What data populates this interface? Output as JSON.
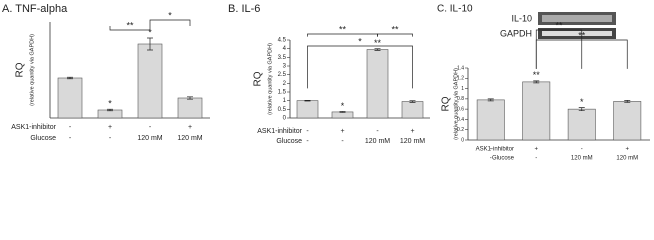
{
  "chart_data": [
    {
      "type": "bar",
      "title": "A. TNF-alpha",
      "y_label": "RQ",
      "y_sublabel": "(relative quantity via GAPDH)",
      "values": [
        1.0,
        0.2,
        1.85,
        0.5
      ],
      "errors": [
        0.02,
        0.02,
        0.15,
        0.03
      ],
      "color": "#d9d9d9",
      "ylim": [
        0,
        2.4
      ],
      "bar_labels": [
        null,
        "*",
        "*",
        null
      ],
      "bracket_labels": [
        "**",
        "*"
      ],
      "treatments": [
        {
          "name": "ASK1-inhibitor",
          "levels": [
            "-",
            "+",
            "-",
            "+"
          ]
        },
        {
          "name": "Glucose",
          "levels": [
            "-",
            "-",
            "120 mM",
            "120 mM"
          ]
        }
      ]
    },
    {
      "type": "bar",
      "title": "B. IL-6",
      "y_label": "RQ",
      "y_sublabel": "(relative quantity via GAPDH)",
      "values": [
        1.0,
        0.35,
        3.95,
        0.95
      ],
      "errors": [
        0.02,
        0.03,
        0.05,
        0.05
      ],
      "color": "#d9d9d9",
      "ylim": [
        0,
        4.5
      ],
      "yticks": [
        0,
        0.5,
        1,
        1.5,
        2,
        2.5,
        3,
        3.5,
        4,
        4.5
      ],
      "bar_labels": [
        null,
        "*",
        "**",
        null
      ],
      "bracket_labels": [
        "*",
        "**",
        "**"
      ],
      "treatments": [
        {
          "name": "ASK1-inhibitor",
          "levels": [
            "-",
            "+",
            "-",
            "+"
          ]
        },
        {
          "name": "Glucose",
          "levels": [
            "-",
            "-",
            "120 mM",
            "120 mM"
          ]
        }
      ]
    },
    {
      "type": "bar",
      "title": "C. IL-10",
      "y_label": "RQ",
      "y_sublabel": "(relative quantity via GAPDH)",
      "gel_labels": [
        "IL-10",
        "GAPDH"
      ],
      "values": [
        0.78,
        1.13,
        0.6,
        0.75
      ],
      "errors": [
        0.02,
        0.02,
        0.03,
        0.02
      ],
      "color": "#d9d9d9",
      "ylim": [
        0,
        1.4
      ],
      "yticks": [
        0,
        0.2,
        0.4,
        0.6,
        0.8,
        1,
        1.2,
        1.4
      ],
      "bar_labels": [
        null,
        "**",
        "*",
        null
      ],
      "bracket_labels": [
        "**",
        "**"
      ],
      "treatments": [
        {
          "name": "ASK1-inhibitor",
          "levels": [
            "-",
            "+",
            "-",
            "+"
          ]
        },
        {
          "name": "Glucose",
          "levels": [
            "-",
            "-",
            "120 mM",
            "120 mM"
          ]
        }
      ]
    }
  ]
}
